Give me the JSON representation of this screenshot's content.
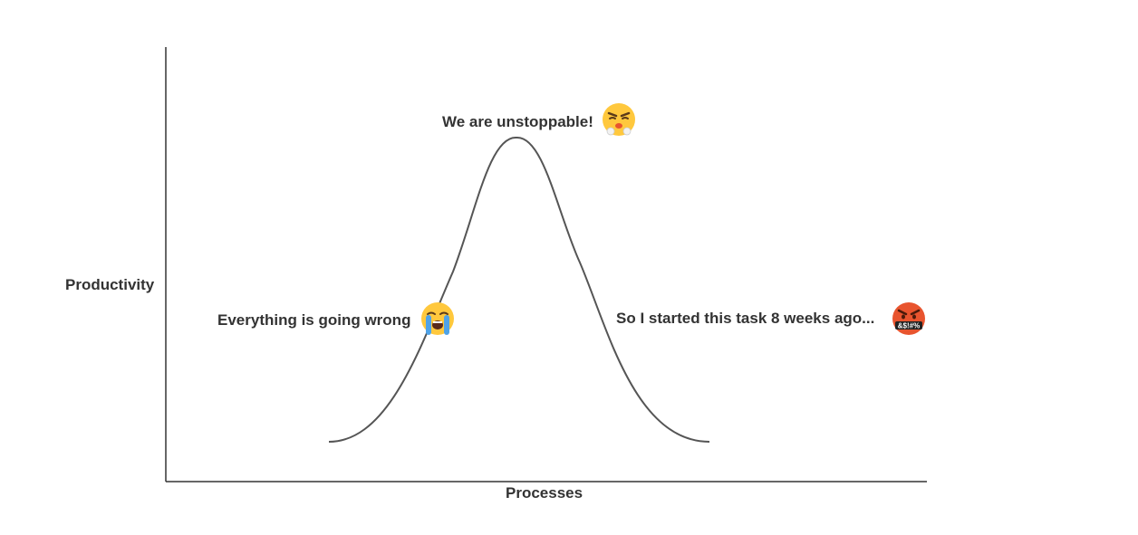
{
  "axes": {
    "y_label": "Productivity",
    "x_label": "Processes"
  },
  "annotations": [
    {
      "id": "peak",
      "text": "We are unstoppable!",
      "icon": "steam-from-nose-face-icon"
    },
    {
      "id": "rising",
      "text": "Everything is going wrong",
      "icon": "loudly-crying-face-icon"
    },
    {
      "id": "falling",
      "text": "So I started this task 8 weeks ago...",
      "icon": "cursing-face-icon",
      "icon_text": "&$!#%"
    }
  ],
  "colors": {
    "axis": "#333333",
    "curve": "#555555",
    "text": "#333333",
    "emoji_yellow": "#FFC83D",
    "emoji_red": "#E8542E"
  }
}
